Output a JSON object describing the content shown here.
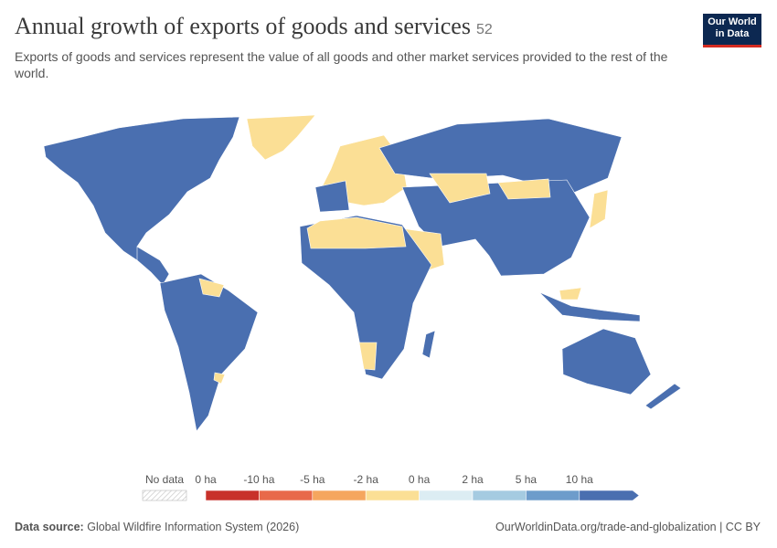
{
  "header": {
    "title": "Annual growth of exports of goods and services",
    "badge": "52",
    "subtitle": "Exports of goods and services represent the value of all goods and other market services provided to the rest of the world."
  },
  "logo": [
    "Our World",
    "in Data"
  ],
  "legend": {
    "no_data": "No data",
    "labels": [
      "0 ha",
      "-10 ha",
      "-5 ha",
      "-2 ha",
      "0 ha",
      "2 ha",
      "5 ha",
      "10 ha"
    ],
    "colors": [
      "#c8312a",
      "#e8694a",
      "#f5a65e",
      "#fbdf95",
      "#dcedf3",
      "#a5cbe1",
      "#6d9ccb",
      "#4a6fb0"
    ]
  },
  "footer": {
    "source_label": "Data source:",
    "source": "Global Wildfire Information System (2026)",
    "url": "OurWorldinData.org/trade-and-globalization | CC BY"
  }
}
